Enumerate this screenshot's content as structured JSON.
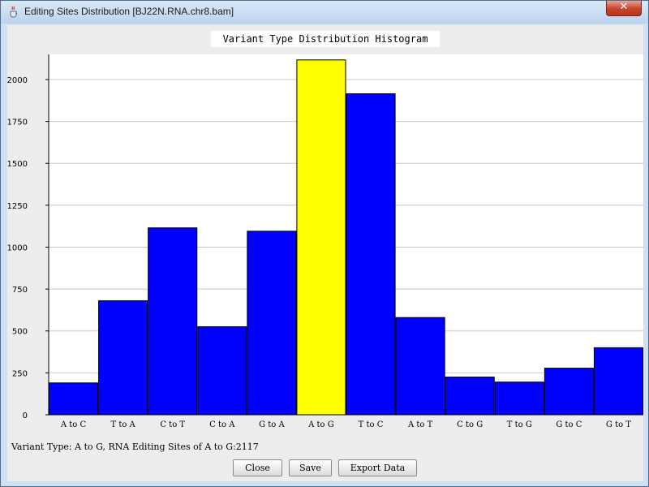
{
  "window": {
    "title": "Editing Sites Distribution [BJ22N.RNA.chr8.bam]",
    "close_glyph": "✕"
  },
  "chart_data": {
    "type": "bar",
    "title": "Variant Type Distribution Histogram",
    "categories": [
      "A to C",
      "T to A",
      "C to T",
      "C to A",
      "G to A",
      "A to G",
      "T to C",
      "A to T",
      "C to G",
      "T to G",
      "G to C",
      "G to T"
    ],
    "values": [
      190,
      680,
      1115,
      525,
      1095,
      2117,
      1915,
      580,
      225,
      195,
      278,
      400
    ],
    "highlight_category": "A to G",
    "ylim": [
      0,
      2150
    ],
    "yticks": [
      0,
      250,
      500,
      750,
      1000,
      1250,
      1500,
      1750,
      2000
    ],
    "xlabel": "",
    "ylabel": "",
    "grid": true,
    "bar_color": "#0000ff",
    "highlight_color": "#ffff00",
    "background": "#ffffff",
    "grid_color": "#c8c8c8"
  },
  "status": {
    "text": "Variant Type: A to G, RNA Editing Sites of A to G:2117"
  },
  "buttons": {
    "close": "Close",
    "save": "Save",
    "export": "Export Data"
  },
  "icons": {
    "app": "java-cup-icon"
  }
}
